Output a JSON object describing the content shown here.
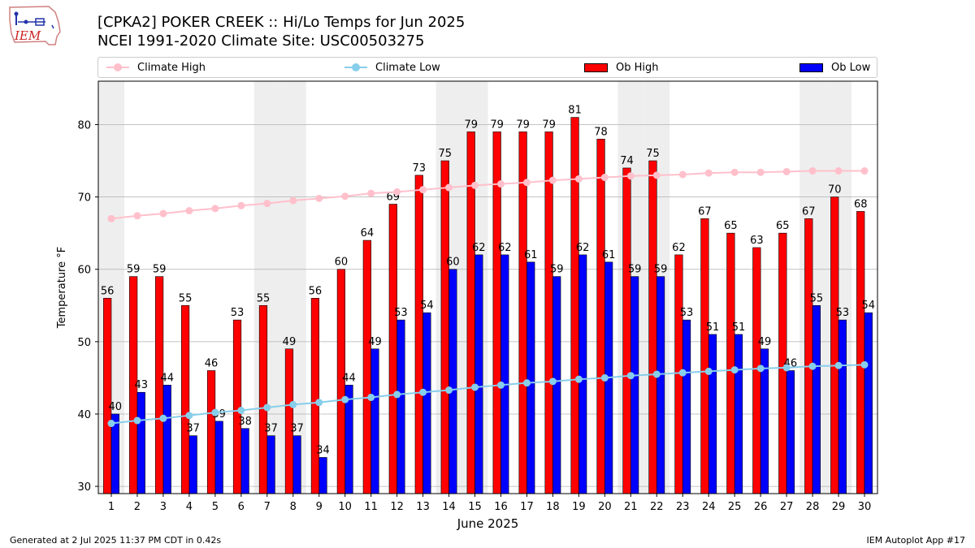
{
  "header": {
    "title_line1": "[CPKA2] POKER CREEK :: Hi/Lo Temps for Jun 2025",
    "title_line2": "NCEI 1991-2020 Climate Site: USC00503275",
    "logo_text": "IEM"
  },
  "legend": {
    "climate_high": "Climate High",
    "climate_low": "Climate Low",
    "ob_high": "Ob High",
    "ob_low": "Ob Low"
  },
  "footer": {
    "generated": "Generated at 2 Jul 2025 11:37 PM CDT in 0.42s",
    "app": "IEM Autoplot App #17"
  },
  "colors": {
    "ob_high": "#ff0000",
    "ob_low": "#0000ff",
    "climate_high": "#ffc0cb",
    "climate_low": "#87ceeb",
    "weekend_shade": "#eeeeee",
    "grid": "#b0b0b0"
  },
  "chart_data": {
    "type": "bar",
    "xlabel": "June 2025",
    "ylabel": "Temperature °F",
    "ylim": [
      29,
      86
    ],
    "yticks": [
      30,
      40,
      50,
      60,
      70,
      80
    ],
    "grid": "horizontal",
    "legend_position": "top",
    "categories": [
      "1",
      "2",
      "3",
      "4",
      "5",
      "6",
      "7",
      "8",
      "9",
      "10",
      "11",
      "12",
      "13",
      "14",
      "15",
      "16",
      "17",
      "18",
      "19",
      "20",
      "21",
      "22",
      "23",
      "24",
      "25",
      "26",
      "27",
      "28",
      "29",
      "30"
    ],
    "shaded_days": [
      1,
      7,
      8,
      14,
      15,
      21,
      22,
      28,
      29
    ],
    "series": [
      {
        "name": "Ob High",
        "type": "bar",
        "values": [
          56,
          59,
          59,
          55,
          46,
          53,
          55,
          49,
          56,
          60,
          64,
          69,
          73,
          75,
          79,
          79,
          79,
          79,
          81,
          78,
          74,
          75,
          62,
          67,
          65,
          63,
          65,
          67,
          70,
          68
        ]
      },
      {
        "name": "Ob Low",
        "type": "bar",
        "values": [
          40,
          43,
          44,
          37,
          39,
          38,
          37,
          37,
          34,
          44,
          49,
          53,
          54,
          60,
          62,
          62,
          61,
          59,
          62,
          61,
          59,
          59,
          53,
          51,
          51,
          49,
          46,
          55,
          53,
          54
        ]
      },
      {
        "name": "Climate High",
        "type": "line",
        "values": [
          67.0,
          67.4,
          67.7,
          68.1,
          68.4,
          68.8,
          69.1,
          69.5,
          69.8,
          70.1,
          70.5,
          70.7,
          71.0,
          71.3,
          71.6,
          71.8,
          72.0,
          72.3,
          72.5,
          72.7,
          72.9,
          73.0,
          73.1,
          73.3,
          73.4,
          73.4,
          73.5,
          73.6,
          73.6,
          73.6
        ]
      },
      {
        "name": "Climate Low",
        "type": "line",
        "values": [
          38.7,
          39.1,
          39.4,
          39.8,
          40.2,
          40.5,
          40.9,
          41.3,
          41.6,
          42.0,
          42.3,
          42.7,
          43.0,
          43.3,
          43.7,
          44.0,
          44.3,
          44.5,
          44.8,
          45.0,
          45.3,
          45.5,
          45.7,
          45.9,
          46.1,
          46.3,
          46.4,
          46.6,
          46.7,
          46.8
        ]
      }
    ]
  }
}
